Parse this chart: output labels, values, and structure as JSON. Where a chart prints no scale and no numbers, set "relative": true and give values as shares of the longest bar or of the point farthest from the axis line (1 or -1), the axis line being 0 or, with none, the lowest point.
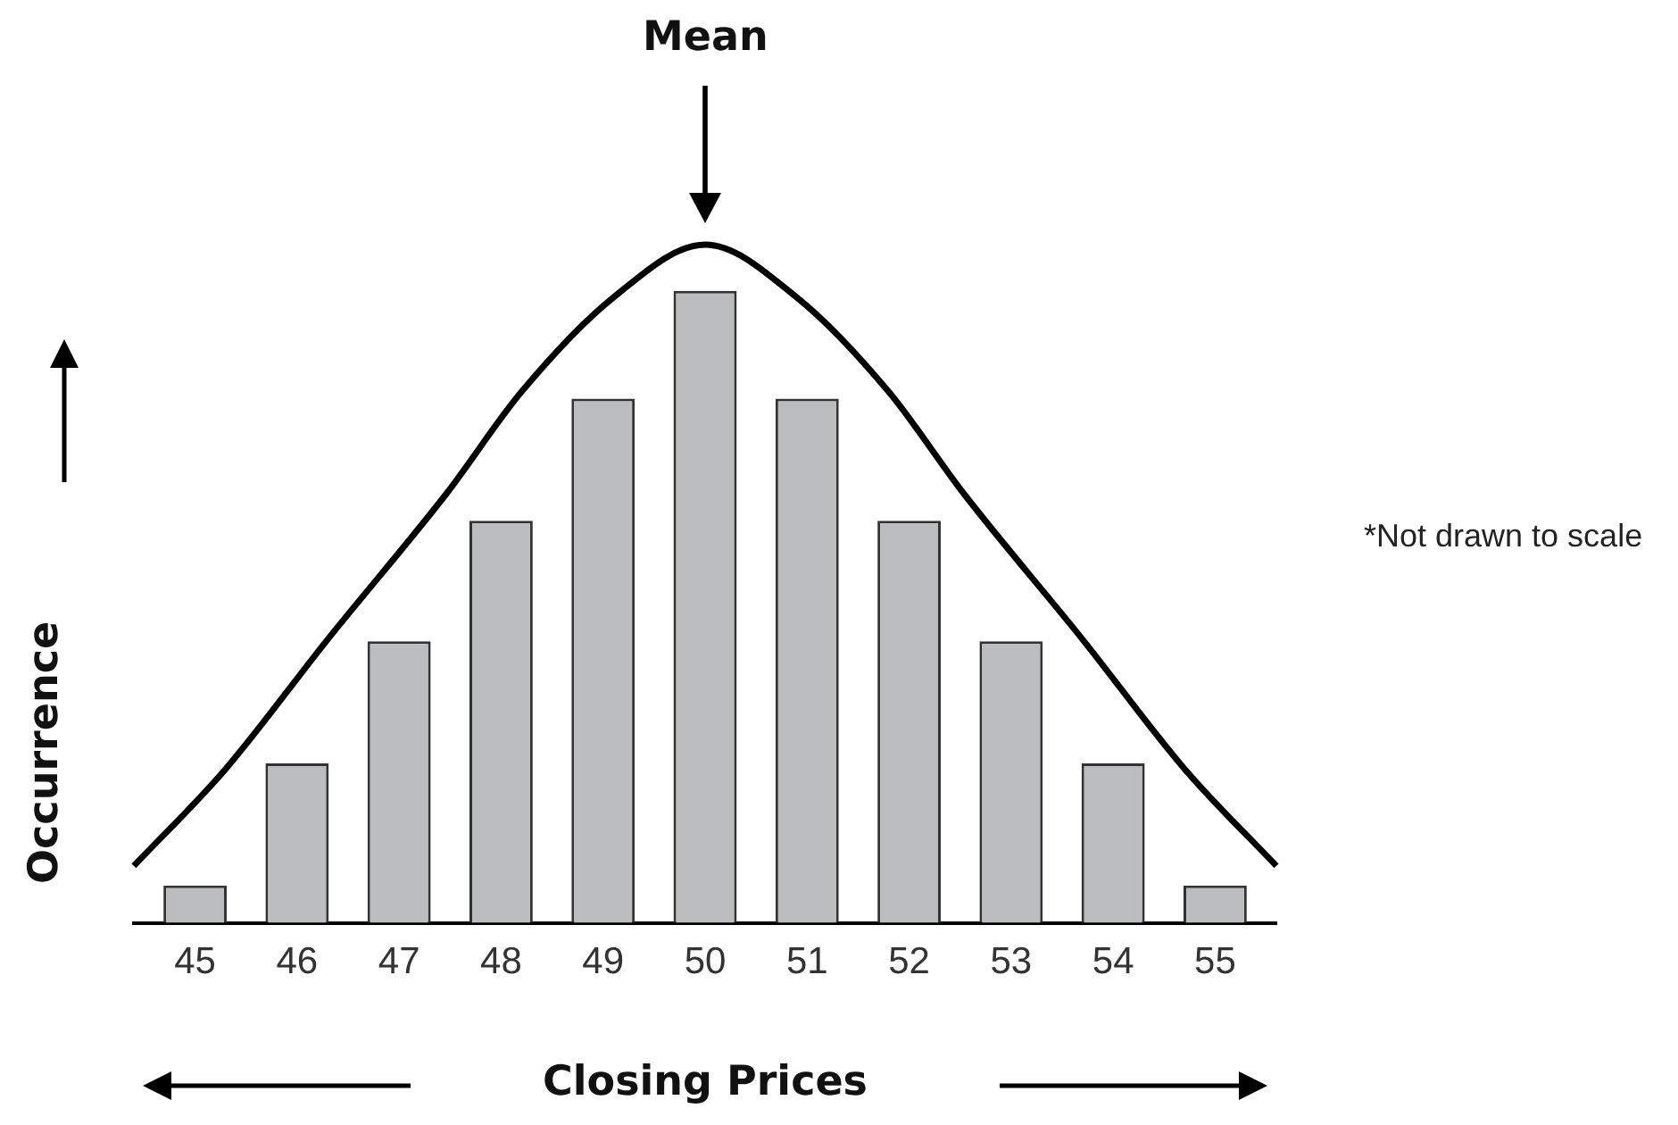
{
  "chart_data": {
    "type": "bar",
    "relative": true,
    "xlabel": "Closing Prices",
    "ylabel": "Occurrence",
    "x": [
      45,
      46,
      47,
      48,
      49,
      50,
      51,
      52,
      53,
      54,
      55
    ],
    "xlim": [
      44.4,
      55.6
    ],
    "xticks": [
      45,
      46,
      47,
      48,
      49,
      50,
      51,
      52,
      53,
      54,
      55
    ],
    "series": [
      {
        "color": "#bbbcbe",
        "values": [
          0.055,
          0.235,
          0.415,
          0.593,
          0.773,
          0.932,
          0.773,
          0.593,
          0.415,
          0.235,
          0.055
        ]
      },
      {
        "type": "line",
        "color": "#000000",
        "x": [
          44.4,
          45.3,
          46.3,
          47.47,
          48.2,
          49.1,
          50,
          50.9,
          51.8,
          52.53,
          53.7,
          54.7,
          55.6
        ],
        "values": [
          0.084,
          0.227,
          0.418,
          0.634,
          0.783,
          0.922,
          1,
          0.922,
          0.783,
          0.634,
          0.418,
          0.227,
          0.084
        ]
      }
    ],
    "annotations": [
      {
        "text": "Mean",
        "x": 50
      },
      "*Not drawn to scale"
    ],
    "grid": false,
    "legend": false,
    "marker": "none",
    "line_style": "solid"
  }
}
